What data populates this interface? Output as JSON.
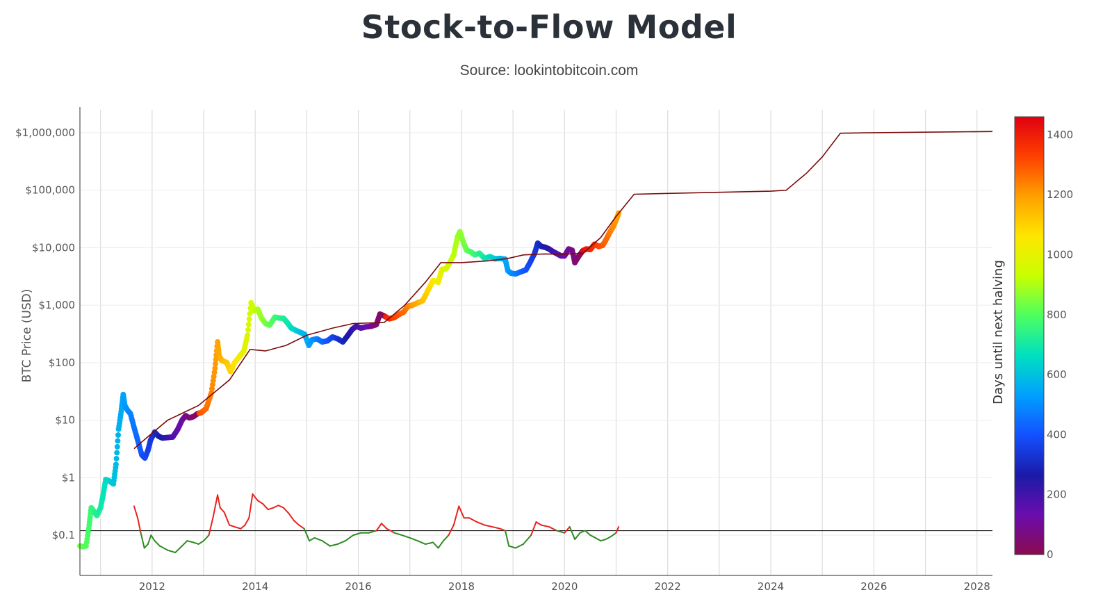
{
  "title": "Stock-to-Flow Model",
  "subtitle": "Source: lookintobitcoin.com",
  "chart_data": {
    "type": "scatter",
    "x_axis": {
      "range": [
        2010.6,
        2028.3
      ],
      "tick_labels": [
        "2012",
        "2014",
        "2016",
        "2018",
        "2020",
        "2022",
        "2024",
        "2026",
        "2028"
      ],
      "tick_values": [
        2012,
        2014,
        2016,
        2018,
        2020,
        2022,
        2024,
        2026,
        2028
      ],
      "minor_gridlines_every_year": true
    },
    "y_axis": {
      "label": "BTC Price (USD)",
      "scale": "log",
      "range": [
        0.02,
        2500000
      ],
      "tick_labels": [
        "$0.1",
        "$1",
        "$10",
        "$100",
        "$1,000",
        "$10,000",
        "$100,000",
        "$1,000,000"
      ],
      "tick_values": [
        0.1,
        1,
        10,
        100,
        1000,
        10000,
        100000,
        1000000
      ]
    },
    "colorbar": {
      "label": "Days until next halving",
      "range": [
        0,
        1460
      ],
      "tick_labels": [
        "0",
        "200",
        "400",
        "600",
        "800",
        "1000",
        "1200",
        "1400"
      ],
      "tick_values": [
        0,
        200,
        400,
        600,
        800,
        1000,
        1200,
        1400
      ],
      "colorscale": [
        "#8b0a50",
        "#6a0dad",
        "#1a1aa8",
        "#1450ff",
        "#00a0ff",
        "#00e0c0",
        "#4cff60",
        "#c8ff00",
        "#ffe600",
        "#ffa000",
        "#ff4000",
        "#e00010"
      ]
    },
    "halvings": [
      2012.91,
      2016.52,
      2020.36,
      2024.3
    ],
    "series": [
      {
        "kind": "price_points",
        "color_by": "days_until_next_halving",
        "points": [
          [
            2010.6,
            0.065
          ],
          [
            2010.65,
            0.063
          ],
          [
            2010.72,
            0.065
          ],
          [
            2010.78,
            0.15
          ],
          [
            2010.82,
            0.3
          ],
          [
            2010.87,
            0.26
          ],
          [
            2010.93,
            0.22
          ],
          [
            2011.0,
            0.3
          ],
          [
            2011.05,
            0.5
          ],
          [
            2011.1,
            0.93
          ],
          [
            2011.17,
            0.88
          ],
          [
            2011.25,
            0.78
          ],
          [
            2011.3,
            1.7
          ],
          [
            2011.35,
            7.0
          ],
          [
            2011.4,
            14
          ],
          [
            2011.44,
            28
          ],
          [
            2011.47,
            18
          ],
          [
            2011.52,
            15
          ],
          [
            2011.58,
            13
          ],
          [
            2011.65,
            7.5
          ],
          [
            2011.72,
            4.5
          ],
          [
            2011.8,
            2.5
          ],
          [
            2011.86,
            2.2
          ],
          [
            2011.92,
            3.0
          ],
          [
            2011.97,
            4.5
          ],
          [
            2012.05,
            6.2
          ],
          [
            2012.12,
            5.3
          ],
          [
            2012.2,
            4.9
          ],
          [
            2012.3,
            5.0
          ],
          [
            2012.4,
            5.1
          ],
          [
            2012.5,
            7.0
          ],
          [
            2012.58,
            10
          ],
          [
            2012.65,
            12
          ],
          [
            2012.72,
            11
          ],
          [
            2012.8,
            11.5
          ],
          [
            2012.88,
            13
          ],
          [
            2012.95,
            13.5
          ],
          [
            2013.05,
            16
          ],
          [
            2013.15,
            30
          ],
          [
            2013.22,
            80
          ],
          [
            2013.27,
            230
          ],
          [
            2013.3,
            130
          ],
          [
            2013.35,
            110
          ],
          [
            2013.45,
            100
          ],
          [
            2013.52,
            70
          ],
          [
            2013.6,
            100
          ],
          [
            2013.7,
            130
          ],
          [
            2013.78,
            160
          ],
          [
            2013.85,
            300
          ],
          [
            2013.92,
            1100
          ],
          [
            2013.98,
            800
          ],
          [
            2014.05,
            850
          ],
          [
            2014.12,
            600
          ],
          [
            2014.2,
            480
          ],
          [
            2014.28,
            450
          ],
          [
            2014.38,
            620
          ],
          [
            2014.45,
            600
          ],
          [
            2014.55,
            590
          ],
          [
            2014.62,
            500
          ],
          [
            2014.7,
            400
          ],
          [
            2014.8,
            360
          ],
          [
            2014.9,
            330
          ],
          [
            2014.96,
            310
          ],
          [
            2015.04,
            200
          ],
          [
            2015.1,
            250
          ],
          [
            2015.2,
            260
          ],
          [
            2015.3,
            230
          ],
          [
            2015.4,
            240
          ],
          [
            2015.5,
            280
          ],
          [
            2015.6,
            260
          ],
          [
            2015.7,
            230
          ],
          [
            2015.8,
            300
          ],
          [
            2015.88,
            380
          ],
          [
            2015.96,
            430
          ],
          [
            2016.05,
            400
          ],
          [
            2016.15,
            420
          ],
          [
            2016.25,
            430
          ],
          [
            2016.35,
            460
          ],
          [
            2016.42,
            700
          ],
          [
            2016.5,
            650
          ],
          [
            2016.6,
            580
          ],
          [
            2016.7,
            610
          ],
          [
            2016.8,
            700
          ],
          [
            2016.88,
            760
          ],
          [
            2016.96,
            960
          ],
          [
            2017.05,
            1000
          ],
          [
            2017.15,
            1100
          ],
          [
            2017.25,
            1200
          ],
          [
            2017.35,
            1800
          ],
          [
            2017.45,
            2700
          ],
          [
            2017.55,
            2500
          ],
          [
            2017.62,
            4200
          ],
          [
            2017.7,
            4300
          ],
          [
            2017.78,
            5600
          ],
          [
            2017.85,
            7500
          ],
          [
            2017.92,
            15000
          ],
          [
            2017.97,
            19000
          ],
          [
            2018.03,
            13000
          ],
          [
            2018.1,
            9000
          ],
          [
            2018.18,
            8500
          ],
          [
            2018.26,
            7500
          ],
          [
            2018.35,
            8000
          ],
          [
            2018.45,
            6500
          ],
          [
            2018.55,
            7000
          ],
          [
            2018.65,
            6400
          ],
          [
            2018.75,
            6500
          ],
          [
            2018.85,
            6300
          ],
          [
            2018.9,
            4000
          ],
          [
            2018.96,
            3600
          ],
          [
            2019.05,
            3500
          ],
          [
            2019.15,
            3800
          ],
          [
            2019.25,
            4100
          ],
          [
            2019.33,
            5500
          ],
          [
            2019.42,
            8000
          ],
          [
            2019.48,
            12000
          ],
          [
            2019.55,
            10500
          ],
          [
            2019.62,
            10200
          ],
          [
            2019.7,
            9500
          ],
          [
            2019.78,
            8500
          ],
          [
            2019.86,
            7800
          ],
          [
            2019.93,
            7200
          ],
          [
            2020.0,
            7200
          ],
          [
            2020.08,
            9500
          ],
          [
            2020.15,
            9000
          ],
          [
            2020.2,
            5500
          ],
          [
            2020.27,
            7000
          ],
          [
            2020.35,
            8800
          ],
          [
            2020.42,
            9500
          ],
          [
            2020.5,
            9300
          ],
          [
            2020.58,
            11500
          ],
          [
            2020.66,
            10500
          ],
          [
            2020.74,
            11000
          ],
          [
            2020.8,
            13500
          ],
          [
            2020.87,
            18000
          ],
          [
            2020.94,
            23000
          ],
          [
            2021.0,
            30000
          ],
          [
            2021.05,
            40000
          ]
        ]
      },
      {
        "kind": "stock_to_flow_model_line",
        "color": "#7a0a0a",
        "points": [
          [
            2011.65,
            3.2
          ],
          [
            2011.9,
            5
          ],
          [
            2012.3,
            10
          ],
          [
            2012.9,
            18
          ],
          [
            2013.5,
            50
          ],
          [
            2013.9,
            170
          ],
          [
            2014.2,
            160
          ],
          [
            2014.6,
            200
          ],
          [
            2015.0,
            300
          ],
          [
            2015.5,
            400
          ],
          [
            2015.9,
            480
          ],
          [
            2016.5,
            500
          ],
          [
            2016.9,
            1000
          ],
          [
            2017.3,
            2500
          ],
          [
            2017.6,
            5500
          ],
          [
            2018.0,
            5500
          ],
          [
            2018.5,
            5900
          ],
          [
            2018.9,
            6500
          ],
          [
            2019.2,
            7500
          ],
          [
            2019.6,
            7800
          ],
          [
            2020.0,
            7700
          ],
          [
            2020.36,
            8000
          ],
          [
            2020.7,
            15000
          ],
          [
            2021.0,
            35000
          ],
          [
            2021.35,
            85000
          ],
          [
            2022.0,
            88000
          ],
          [
            2023.0,
            92000
          ],
          [
            2024.0,
            96000
          ],
          [
            2024.3,
            100000
          ],
          [
            2024.7,
            200000
          ],
          [
            2025.0,
            380000
          ],
          [
            2025.35,
            980000
          ],
          [
            2026.0,
            1000000
          ],
          [
            2027.0,
            1020000
          ],
          [
            2028.3,
            1050000
          ]
        ]
      },
      {
        "kind": "oscillator",
        "baseline": 0.12,
        "color_above": "#e8231f",
        "color_below": "#2e8b22",
        "points": [
          [
            2011.65,
            0.32
          ],
          [
            2011.72,
            0.2
          ],
          [
            2011.78,
            0.11
          ],
          [
            2011.85,
            0.06
          ],
          [
            2011.92,
            0.07
          ],
          [
            2011.98,
            0.1
          ],
          [
            2012.05,
            0.08
          ],
          [
            2012.15,
            0.065
          ],
          [
            2012.3,
            0.055
          ],
          [
            2012.45,
            0.05
          ],
          [
            2012.58,
            0.065
          ],
          [
            2012.68,
            0.08
          ],
          [
            2012.8,
            0.075
          ],
          [
            2012.9,
            0.07
          ],
          [
            2013.0,
            0.08
          ],
          [
            2013.1,
            0.1
          ],
          [
            2013.18,
            0.2
          ],
          [
            2013.27,
            0.5
          ],
          [
            2013.32,
            0.3
          ],
          [
            2013.4,
            0.25
          ],
          [
            2013.5,
            0.15
          ],
          [
            2013.6,
            0.14
          ],
          [
            2013.72,
            0.13
          ],
          [
            2013.8,
            0.15
          ],
          [
            2013.88,
            0.2
          ],
          [
            2013.95,
            0.52
          ],
          [
            2014.05,
            0.4
          ],
          [
            2014.15,
            0.35
          ],
          [
            2014.25,
            0.28
          ],
          [
            2014.35,
            0.3
          ],
          [
            2014.45,
            0.33
          ],
          [
            2014.55,
            0.3
          ],
          [
            2014.65,
            0.24
          ],
          [
            2014.75,
            0.18
          ],
          [
            2014.85,
            0.15
          ],
          [
            2014.95,
            0.13
          ],
          [
            2015.05,
            0.08
          ],
          [
            2015.15,
            0.09
          ],
          [
            2015.3,
            0.08
          ],
          [
            2015.45,
            0.065
          ],
          [
            2015.6,
            0.07
          ],
          [
            2015.75,
            0.08
          ],
          [
            2015.9,
            0.1
          ],
          [
            2016.05,
            0.11
          ],
          [
            2016.2,
            0.11
          ],
          [
            2016.35,
            0.12
          ],
          [
            2016.45,
            0.16
          ],
          [
            2016.55,
            0.13
          ],
          [
            2016.7,
            0.11
          ],
          [
            2016.85,
            0.1
          ],
          [
            2017.0,
            0.09
          ],
          [
            2017.15,
            0.08
          ],
          [
            2017.3,
            0.07
          ],
          [
            2017.45,
            0.075
          ],
          [
            2017.55,
            0.06
          ],
          [
            2017.65,
            0.08
          ],
          [
            2017.75,
            0.1
          ],
          [
            2017.85,
            0.15
          ],
          [
            2017.95,
            0.32
          ],
          [
            2018.05,
            0.2
          ],
          [
            2018.15,
            0.2
          ],
          [
            2018.3,
            0.17
          ],
          [
            2018.45,
            0.15
          ],
          [
            2018.6,
            0.14
          ],
          [
            2018.75,
            0.13
          ],
          [
            2018.85,
            0.12
          ],
          [
            2018.92,
            0.065
          ],
          [
            2019.05,
            0.06
          ],
          [
            2019.2,
            0.07
          ],
          [
            2019.35,
            0.1
          ],
          [
            2019.45,
            0.17
          ],
          [
            2019.55,
            0.15
          ],
          [
            2019.7,
            0.14
          ],
          [
            2019.85,
            0.12
          ],
          [
            2020.0,
            0.11
          ],
          [
            2020.1,
            0.14
          ],
          [
            2020.2,
            0.085
          ],
          [
            2020.3,
            0.11
          ],
          [
            2020.4,
            0.12
          ],
          [
            2020.5,
            0.1
          ],
          [
            2020.6,
            0.09
          ],
          [
            2020.7,
            0.08
          ],
          [
            2020.8,
            0.085
          ],
          [
            2020.9,
            0.095
          ],
          [
            2021.0,
            0.11
          ],
          [
            2021.05,
            0.14
          ]
        ]
      }
    ],
    "reference_line": {
      "y": 0.12,
      "color": "#000000"
    },
    "grid": true,
    "legend": "none"
  }
}
